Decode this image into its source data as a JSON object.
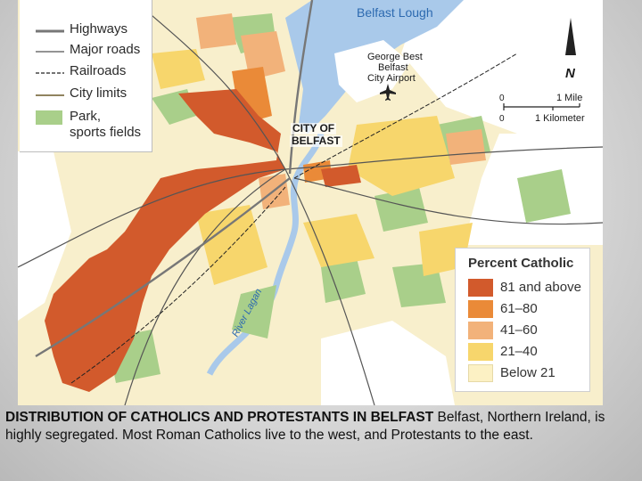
{
  "legend": {
    "items": [
      {
        "label": "Highways"
      },
      {
        "label": "Major roads"
      },
      {
        "label": "Railroads"
      },
      {
        "label": "City limits"
      },
      {
        "label": "Park,",
        "label2": "sports fields"
      }
    ]
  },
  "map_labels": {
    "lough": "Belfast Lough",
    "airport_1": "George Best",
    "airport_2": "Belfast",
    "airport_3": "City Airport",
    "city_1": "CITY OF",
    "city_2": "BELFAST",
    "river": "River Lagan",
    "north": "N"
  },
  "scale": {
    "miles_zero": "0",
    "miles_label": "1 Mile",
    "km_zero": "0",
    "km_label": "1 Kilometer"
  },
  "category_legend": {
    "title": "Percent Catholic",
    "items": [
      {
        "label": "81 and above",
        "color": "#d25a2c"
      },
      {
        "label": "61–80",
        "color": "#ea8a38"
      },
      {
        "label": "41–60",
        "color": "#f2b27a"
      },
      {
        "label": "21–40",
        "color": "#f7d66c"
      },
      {
        "label": "Below 21",
        "color": "#fcf1c4"
      }
    ]
  },
  "caption": {
    "title": "DISTRIBUTION OF CATHOLICS AND PROTESTANTS IN BELFAST",
    "text": " Belfast, Northern Ireland, is highly segregated. Most Roman Catholics live to the west, and Protestants to the east."
  },
  "colors": {
    "water": "#a9c9ea",
    "park": "#a9cf8a",
    "map_bg": "#f8efcc"
  }
}
